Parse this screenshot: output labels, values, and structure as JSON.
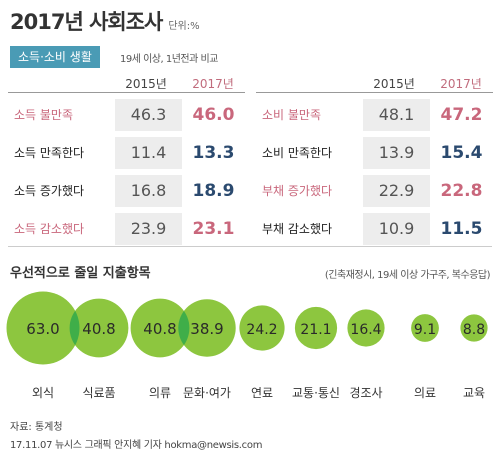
{
  "header": {
    "title": "2017년 사회조사",
    "unit": "단위:%"
  },
  "section": {
    "tag": "소득·소비 생활",
    "note": "19세 이상, 1년전과 비교"
  },
  "table": {
    "year_prev": "2015년",
    "year_curr": "2017년",
    "left_rows": [
      {
        "label": "소득 불만족",
        "v2015": "46.3",
        "v2017": "46.0"
      },
      {
        "label": "소득 만족한다",
        "v2015": "11.4",
        "v2017": "13.3"
      },
      {
        "label": "소득 증가했다",
        "v2015": "16.8",
        "v2017": "18.9"
      },
      {
        "label": "소득 감소했다",
        "v2015": "23.9",
        "v2017": "23.1"
      }
    ],
    "right_rows": [
      {
        "label": "소비 불만족",
        "v2015": "48.1",
        "v2017": "47.2"
      },
      {
        "label": "소비 만족한다",
        "v2015": "13.9",
        "v2017": "15.4"
      },
      {
        "label": "부채 증가했다",
        "v2015": "22.9",
        "v2017": "22.8"
      },
      {
        "label": "부채 감소했다",
        "v2015": "10.9",
        "v2017": "11.5"
      }
    ]
  },
  "spending": {
    "title": "우선적으로 줄일 지출항목",
    "note": "(긴축재정시, 19세 이상 가구주, 복수응답)"
  },
  "chart_data": [
    {
      "type": "table",
      "columns": [
        "",
        "2015년",
        "2017년"
      ],
      "rows": [
        [
          "소득 불만족",
          46.3,
          46.0
        ],
        [
          "소득 만족한다",
          11.4,
          13.3
        ],
        [
          "소득 증가했다",
          16.8,
          18.9
        ],
        [
          "소득 감소했다",
          23.9,
          23.1
        ],
        [
          "소비 불만족",
          48.1,
          47.2
        ],
        [
          "소비 만족한다",
          13.9,
          15.4
        ],
        [
          "부채 증가했다",
          22.9,
          22.8
        ],
        [
          "부채 감소했다",
          10.9,
          11.5
        ]
      ]
    },
    {
      "type": "bubble",
      "categories": [
        "외식",
        "식료품",
        "의류",
        "문화·여가",
        "연료",
        "교통·통신",
        "경조사",
        "의료",
        "교육"
      ],
      "values": [
        63.0,
        40.8,
        40.8,
        38.9,
        24.2,
        21.1,
        16.4,
        9.1,
        8.8
      ],
      "value_labels": [
        "63.0",
        "40.8",
        "40.8",
        "38.9",
        "24.2",
        "21.1",
        "16.4",
        "9.1",
        "8.8"
      ]
    }
  ],
  "colors": {
    "bubble": "#8dc63f",
    "bubble_overlap": "#3fae49",
    "tag_bg": "#4a9bb5",
    "pink": "#c9677c",
    "navy": "#2b4a6f"
  },
  "footer": {
    "source": "자료: 통계청",
    "credit": "17.11.07 뉴시스 그래픽 안지혜 기자 hokma@newsis.com"
  }
}
